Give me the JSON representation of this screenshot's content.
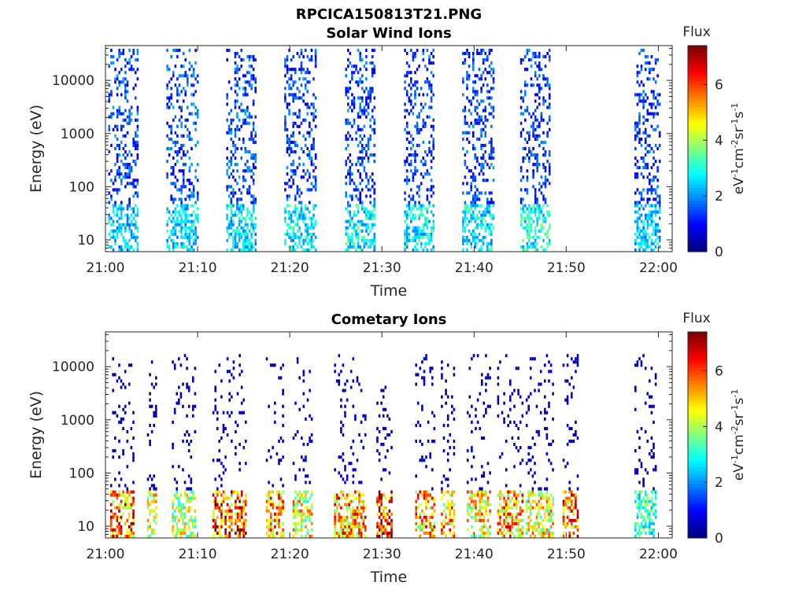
{
  "figure_title": "RPCICA150813T21.PNG",
  "colormap": "jet",
  "colors": {
    "axis": "#262626",
    "title": "#000000"
  },
  "chart_data": [
    {
      "type": "heatmap",
      "title": "Solar Wind Ions",
      "xlabel": "Time",
      "ylabel": "Energy (eV)",
      "x_tick_labels": [
        "21:00",
        "21:10",
        "21:20",
        "21:30",
        "21:40",
        "21:50",
        "22:00"
      ],
      "y_tick_labels": [
        "10",
        "100",
        "1000",
        "10000"
      ],
      "y_scale": "log",
      "ylim": [
        6,
        45000
      ],
      "xlim_minutes": [
        0,
        61.5
      ],
      "colorbar": {
        "title": "Flux",
        "label": "eV^-1 cm^-2 sr^-1 s^-1",
        "ticks": [
          "0",
          "2",
          "4",
          "6"
        ],
        "range": [
          0,
          7.4
        ]
      },
      "bursts": [
        {
          "start_min": 0.3,
          "end_min": 3.6,
          "flux_high": 1.4,
          "flux_low": 2.6
        },
        {
          "start_min": 6.6,
          "end_min": 10.0,
          "flux_high": 1.4,
          "flux_low": 2.8
        },
        {
          "start_min": 13.1,
          "end_min": 16.2,
          "flux_high": 1.4,
          "flux_low": 2.8
        },
        {
          "start_min": 19.4,
          "end_min": 22.8,
          "flux_high": 1.3,
          "flux_low": 2.9
        },
        {
          "start_min": 26.0,
          "end_min": 29.2,
          "flux_high": 1.3,
          "flux_low": 3.0
        },
        {
          "start_min": 32.4,
          "end_min": 35.6,
          "flux_high": 1.3,
          "flux_low": 3.0
        },
        {
          "start_min": 38.7,
          "end_min": 42.1,
          "flux_high": 1.3,
          "flux_low": 2.9
        },
        {
          "start_min": 45.0,
          "end_min": 48.2,
          "flux_high": 1.3,
          "flux_low": 3.2
        },
        {
          "start_min": 57.4,
          "end_min": 60.2,
          "flux_high": 1.3,
          "flux_low": 2.6
        }
      ]
    },
    {
      "type": "heatmap",
      "title": "Cometary Ions",
      "xlabel": "Time",
      "ylabel": "Energy (eV)",
      "x_tick_labels": [
        "21:00",
        "21:10",
        "21:20",
        "21:30",
        "21:40",
        "21:50",
        "22:00"
      ],
      "y_tick_labels": [
        "10",
        "100",
        "1000",
        "10000"
      ],
      "y_scale": "log",
      "ylim": [
        6,
        45000
      ],
      "xlim_minutes": [
        0,
        61.5
      ],
      "colorbar": {
        "title": "Flux",
        "label": "eV^-1 cm^-2 sr^-1 s^-1",
        "ticks": [
          "0",
          "2",
          "4",
          "6"
        ],
        "range": [
          0,
          7.4
        ]
      },
      "bursts": [
        {
          "start_min": 0.5,
          "end_min": 3.0,
          "flux_high": 0.4,
          "flux_low": 6.3
        },
        {
          "start_min": 4.5,
          "end_min": 5.5,
          "flux_high": 0.3,
          "flux_low": 4.8
        },
        {
          "start_min": 7.2,
          "end_min": 9.7,
          "flux_high": 0.4,
          "flux_low": 4.5
        },
        {
          "start_min": 11.6,
          "end_min": 15.3,
          "flux_high": 0.5,
          "flux_low": 6.6
        },
        {
          "start_min": 17.4,
          "end_min": 19.2,
          "flux_high": 0.4,
          "flux_low": 5.8
        },
        {
          "start_min": 20.3,
          "end_min": 22.3,
          "flux_high": 0.5,
          "flux_low": 5.0
        },
        {
          "start_min": 24.8,
          "end_min": 28.3,
          "flux_high": 0.5,
          "flux_low": 5.8
        },
        {
          "start_min": 29.4,
          "end_min": 31.0,
          "flux_high": 0.4,
          "flux_low": 6.8
        },
        {
          "start_min": 33.6,
          "end_min": 35.6,
          "flux_high": 0.5,
          "flux_low": 5.8
        },
        {
          "start_min": 36.4,
          "end_min": 37.8,
          "flux_high": 0.3,
          "flux_low": 5.6
        },
        {
          "start_min": 39.2,
          "end_min": 41.8,
          "flux_high": 0.4,
          "flux_low": 5.2
        },
        {
          "start_min": 42.5,
          "end_min": 45.2,
          "flux_high": 0.4,
          "flux_low": 5.8
        },
        {
          "start_min": 45.6,
          "end_min": 48.6,
          "flux_high": 0.5,
          "flux_low": 5.0
        },
        {
          "start_min": 49.6,
          "end_min": 51.2,
          "flux_high": 0.4,
          "flux_low": 6.3
        },
        {
          "start_min": 57.4,
          "end_min": 59.8,
          "flux_high": 0.3,
          "flux_low": 3.4
        }
      ]
    }
  ]
}
